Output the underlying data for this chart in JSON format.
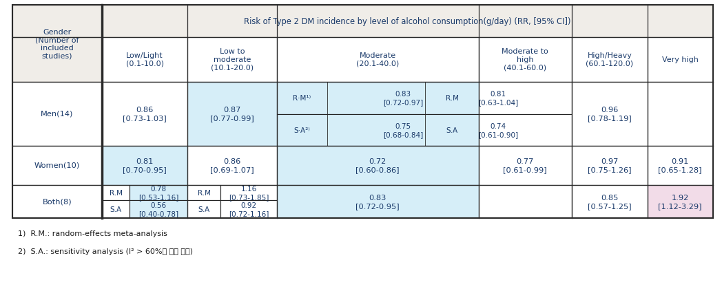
{
  "title": "Risk of Type 2 DM incidence by level of alcohol consumption(g/day) (RR, [95% CI])",
  "col_headers": [
    "Low/Light\n(0.1-10.0)",
    "Low to\nmoderate\n(10.1-20.0)",
    "Moderate\n(20.1-40.0)",
    "Moderate to\nhigh\n(40.1-60.0)",
    "High/Heavy\n(60.1-120.0)",
    "Very high"
  ],
  "footnote1": "1)  R.M.: random-effects meta-analysis",
  "footnote2": "2)  S.A.: sensitivity analysis (I² > 60%인 경우 수행)",
  "c_blue": "#d6eef8",
  "c_hdr": "#f0ede8",
  "c_pink": "#f2dce8",
  "c_white": "#ffffff",
  "c_border": "#2a2a2a",
  "c_text": "#1a3a6a",
  "c_text_dark": "#1a1a1a"
}
